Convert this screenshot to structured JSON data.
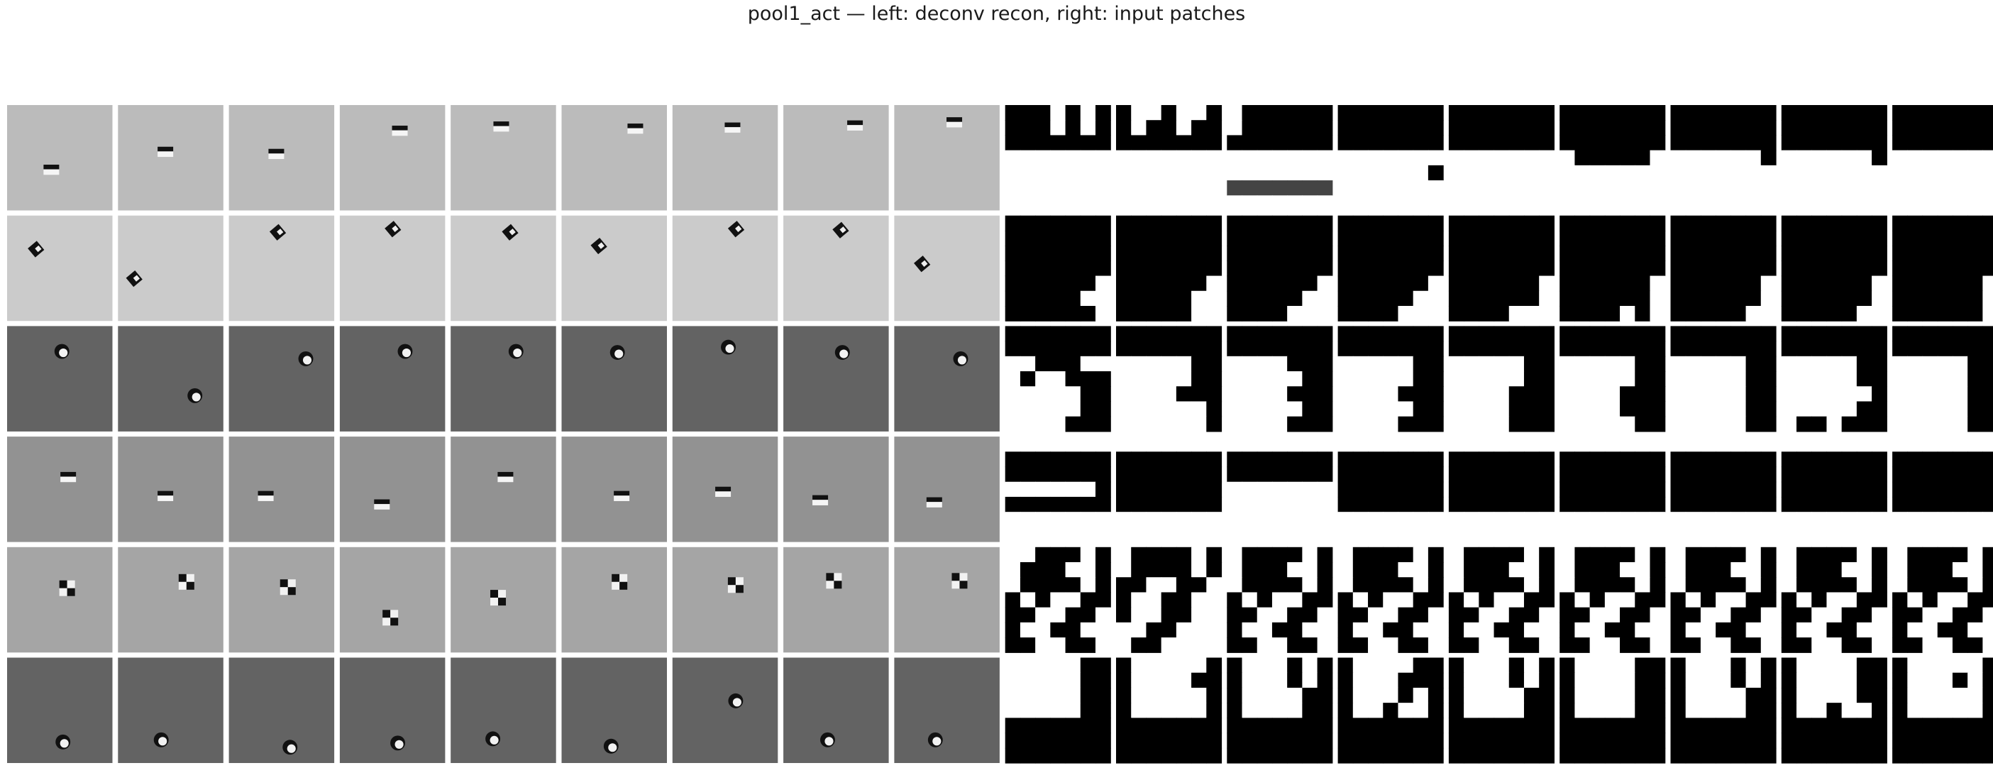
{
  "figure": {
    "title": "pool1_act — left: deconv recon, right: input patches"
  },
  "layout_info": {
    "rows": 6,
    "recon_columns": 9,
    "patch_columns": 9
  },
  "recon_rows": [
    {
      "bg": "#bbbbbb",
      "blob": "horizontal-bar",
      "blobs": [
        [
          0.42,
          0.61
        ],
        [
          0.45,
          0.44
        ],
        [
          0.45,
          0.46
        ],
        [
          0.57,
          0.24
        ],
        [
          0.48,
          0.2
        ],
        [
          0.7,
          0.22
        ],
        [
          0.57,
          0.21
        ],
        [
          0.68,
          0.19
        ],
        [
          0.57,
          0.16
        ]
      ]
    },
    {
      "bg": "#cbcbcb",
      "blob": "diagonal",
      "blobs": [
        [
          0.29,
          0.32
        ],
        [
          0.17,
          0.6
        ],
        [
          0.48,
          0.16
        ],
        [
          0.52,
          0.13
        ],
        [
          0.58,
          0.16
        ],
        [
          0.37,
          0.29
        ],
        [
          0.62,
          0.13
        ],
        [
          0.56,
          0.14
        ],
        [
          0.28,
          0.46
        ]
      ]
    },
    {
      "bg": "#636363",
      "blob": "round",
      "blobs": [
        [
          0.52,
          0.24
        ],
        [
          0.73,
          0.66
        ],
        [
          0.73,
          0.31
        ],
        [
          0.62,
          0.24
        ],
        [
          0.62,
          0.24
        ],
        [
          0.53,
          0.25
        ],
        [
          0.53,
          0.2
        ],
        [
          0.56,
          0.25
        ],
        [
          0.63,
          0.31
        ]
      ]
    },
    {
      "bg": "#929292",
      "blob": "horizontal-bar",
      "blobs": [
        [
          0.58,
          0.38
        ],
        [
          0.45,
          0.56
        ],
        [
          0.35,
          0.56
        ],
        [
          0.4,
          0.64
        ],
        [
          0.52,
          0.38
        ],
        [
          0.57,
          0.56
        ],
        [
          0.48,
          0.52
        ],
        [
          0.35,
          0.6
        ],
        [
          0.38,
          0.62
        ]
      ]
    },
    {
      "bg": "#a5a5a5",
      "blob": "checker-diag",
      "blobs": [
        [
          0.57,
          0.39
        ],
        [
          0.65,
          0.33
        ],
        [
          0.56,
          0.38
        ],
        [
          0.48,
          0.67
        ],
        [
          0.45,
          0.48
        ],
        [
          0.55,
          0.33
        ],
        [
          0.6,
          0.36
        ],
        [
          0.48,
          0.32
        ],
        [
          0.62,
          0.32
        ]
      ]
    },
    {
      "bg": "#636363",
      "blob": "round",
      "blobs": [
        [
          0.53,
          0.8
        ],
        [
          0.41,
          0.78
        ],
        [
          0.58,
          0.85
        ],
        [
          0.55,
          0.81
        ],
        [
          0.4,
          0.77
        ],
        [
          0.47,
          0.84
        ],
        [
          0.6,
          0.41
        ],
        [
          0.42,
          0.78
        ],
        [
          0.39,
          0.78
        ]
      ]
    }
  ],
  "patch_rows": [
    {
      "cells": [
        [
          "000w0w0",
          "000w0w0",
          "0000000",
          "wwwwwww",
          "wwwwwww",
          "wwwwwww",
          "wwwwwww"
        ],
        [
          "0ww0ww0",
          "0w00w00",
          "0000000",
          "wwwwwww",
          "wwwwwww",
          "wwwwwww",
          "wwwwwww"
        ],
        [
          "w000000",
          "w000000",
          "0000000",
          "wwwwwww",
          "wwwwwww",
          "4444444",
          "wwwwwww"
        ],
        [
          "0000000",
          "0000000",
          "0000000",
          "wwwwwww",
          "wwwwww0",
          "wwwwwww",
          "wwwwwww"
        ],
        [
          "0000000",
          "0000000",
          "0000000",
          "wwwwwww",
          "wwwwwww",
          "wwwwwww",
          "wwwwwww"
        ],
        [
          "0000000",
          "0000000",
          "0000000",
          "w00000w",
          "wwwwwww",
          "wwwwwww",
          "wwwwwww"
        ],
        [
          "0000000",
          "0000000",
          "0000000",
          "wwwwww0",
          "wwwwwww",
          "wwwwwww",
          "wwwwwww"
        ],
        [
          "0000000",
          "0000000",
          "0000000",
          "wwwwww0",
          "wwwwwww",
          "wwwwwww",
          "wwwwwww"
        ],
        [
          "0000000",
          "0000000",
          "0000000",
          "wwwwwww",
          "wwwwwww",
          "wwwwwww",
          "wwwwwww"
        ]
      ]
    },
    {
      "cells": [
        [
          "0000000",
          "0000000",
          "0000000",
          "0000000",
          "000000w",
          "00000ww",
          "000000w"
        ],
        [
          "0000000",
          "0000000",
          "0000000",
          "0000000",
          "000000w",
          "00000ww",
          "00000ww"
        ],
        [
          "0000000",
          "0000000",
          "0000000",
          "0000000",
          "000000w",
          "00000ww",
          "0000www"
        ],
        [
          "0000000",
          "0000000",
          "0000000",
          "0000000",
          "000000w",
          "00000ww",
          "0000www"
        ],
        [
          "0000000",
          "0000000",
          "0000000",
          "0000000",
          "000000w",
          "000000w",
          "0000www"
        ],
        [
          "0000000",
          "0000000",
          "0000000",
          "0000000",
          "000000w",
          "000000w",
          "0000w0w"
        ],
        [
          "0000000",
          "0000000",
          "0000000",
          "0000000",
          "000000w",
          "000000w",
          "00000ww"
        ],
        [
          "0000000",
          "0000000",
          "0000000",
          "0000000",
          "000000w",
          "000000w",
          "00000ww"
        ],
        [
          "0000000",
          "0000000",
          "0000000",
          "0000000",
          "000000w",
          "000000w",
          "000000w"
        ]
      ]
    },
    {
      "cells": [
        [
          "0000000",
          "0000000",
          "ww000ww",
          "w0ww000",
          "wwwww00",
          "wwwww00",
          "wwww000"
        ],
        [
          "0000000",
          "0000000",
          "wwwww00",
          "wwwww00",
          "wwww000",
          "wwwwww0",
          "wwwwww0"
        ],
        [
          "0000000",
          "0000000",
          "wwww000",
          "wwwww00",
          "wwww000",
          "wwwww00",
          "wwww000"
        ],
        [
          "0000000",
          "0000000",
          "wwwww00",
          "wwwww00",
          "wwww000",
          "wwwww00",
          "wwww000"
        ],
        [
          "0000000",
          "0000000",
          "wwwww00",
          "wwwww00",
          "wwww000",
          "wwww000",
          "wwww000"
        ],
        [
          "0000000",
          "0000000",
          "wwwww00",
          "wwwww00",
          "wwww000",
          "wwww000",
          "wwwww00"
        ],
        [
          "0000000",
          "0000000",
          "wwwww00",
          "wwwww00",
          "wwwww00",
          "wwwww00",
          "wwwww00"
        ],
        [
          "0000000",
          "0000000",
          "wwwww00",
          "wwwww00",
          "wwwwww0",
          "wwwww00",
          "w00w000"
        ],
        [
          "0000000",
          "0000000",
          "wwwww00",
          "wwwww00",
          "wwwww00",
          "wwwww00",
          "wwwww00"
        ]
      ]
    },
    {
      "cells": [
        [
          "wwwwwww",
          "0000000",
          "0000000",
          "wwwwww0",
          "0000000",
          "wwwwwww",
          "wwwwwww"
        ],
        [
          "wwwwwww",
          "0000000",
          "0000000",
          "0000000",
          "0000000",
          "wwwwwww",
          "wwwwwww"
        ],
        [
          "wwwwwww",
          "0000000",
          "0000000",
          "wwwwwww",
          "wwwwwww",
          "wwwwwww",
          "wwwwwww"
        ],
        [
          "wwwwwww",
          "0000000",
          "0000000",
          "0000000",
          "0000000",
          "wwwwwww",
          "wwwwwww"
        ],
        [
          "wwwwwww",
          "0000000",
          "0000000",
          "0000000",
          "0000000",
          "wwwwwww",
          "wwwwwww"
        ],
        [
          "wwwwwww",
          "0000000",
          "0000000",
          "0000000",
          "0000000",
          "wwwwwww",
          "wwwwwww"
        ],
        [
          "wwwwwww",
          "0000000",
          "0000000",
          "0000000",
          "0000000",
          "wwwwwww",
          "wwwwwww"
        ],
        [
          "wwwwwww",
          "0000000",
          "0000000",
          "0000000",
          "0000000",
          "wwwwwww",
          "wwwwwww"
        ],
        [
          "wwwwwww",
          "0000000",
          "0000000",
          "0000000",
          "0000000",
          "wwwwwww",
          "wwwwwww"
        ]
      ]
    },
    {
      "cells": [
        [
          "ww000w0",
          "w000ww0",
          "w0000w0",
          "0w0ww00",
          "00ww00w",
          "0ww00ww",
          "00ww00w"
        ],
        [
          "w0000w0",
          "w0000w0",
          "00ww00w",
          "0ww00ww",
          "0ww00ww",
          "ww00www",
          "w00wwww"
        ],
        [
          "w0000w0",
          "w000ww0",
          "w0000w0",
          "0w0ww00",
          "00ww00w",
          "0ww00ww",
          "00ww00w"
        ],
        [
          "w0000w0",
          "w000ww0",
          "w0000w0",
          "0w0ww00",
          "00ww00w",
          "0ww00ww",
          "00ww00w"
        ],
        [
          "w0000w0",
          "w000ww0",
          "w0000w0",
          "0w0ww00",
          "00ww00w",
          "0ww00ww",
          "00ww00w"
        ],
        [
          "w0000w0",
          "w000ww0",
          "w0000w0",
          "0w0ww00",
          "00ww00w",
          "0ww00ww",
          "00ww00w"
        ],
        [
          "w0000w0",
          "w000ww0",
          "w0000w0",
          "0w0ww00",
          "00ww00w",
          "0ww00ww",
          "00ww00w"
        ],
        [
          "w0000w0",
          "w000ww0",
          "w0000w0",
          "0w0ww00",
          "00ww00w",
          "0ww00ww",
          "00ww00w"
        ],
        [
          "w0000w0",
          "w000ww0",
          "w0000w0",
          "0w0ww00",
          "00ww00w",
          "0ww00ww",
          "00ww00w"
        ]
      ]
    },
    {
      "cells": [
        [
          "wwwww00",
          "wwwww00",
          "wwwww00",
          "wwwww00",
          "0000000",
          "0000000",
          "0000000"
        ],
        [
          "0wwwww0",
          "0wwww00",
          "0wwwww0",
          "0wwwww0",
          "0000000",
          "0000000",
          "0000000"
        ],
        [
          "0www0w0",
          "0www0w0",
          "0wwww00",
          "0wwww00",
          "0000000",
          "0000000",
          "0000000"
        ],
        [
          "0wwww00",
          "0www000",
          "0www0w0",
          "0ww0ww0",
          "0000000",
          "0000000",
          "0000000"
        ],
        [
          "0www0w0",
          "0www0w0",
          "0wwww00",
          "0wwww00",
          "0000000",
          "0000000",
          "0000000"
        ],
        [
          "0wwww00",
          "0wwww00",
          "0wwww00",
          "0wwww00",
          "0000000",
          "0000000",
          "0000000"
        ],
        [
          "0www0w0",
          "0www0w0",
          "0wwww00",
          "0wwww00",
          "0000000",
          "0000000",
          "0000000"
        ],
        [
          "0wwww00",
          "0wwww00",
          "0wwww00",
          "0ww0ww0",
          "0000000",
          "0000000",
          "0000000"
        ],
        [
          "0wwwww0",
          "0www0w0",
          "0wwwww0",
          "0wwwww0",
          "0000000",
          "0000000",
          "0000000"
        ]
      ]
    }
  ]
}
